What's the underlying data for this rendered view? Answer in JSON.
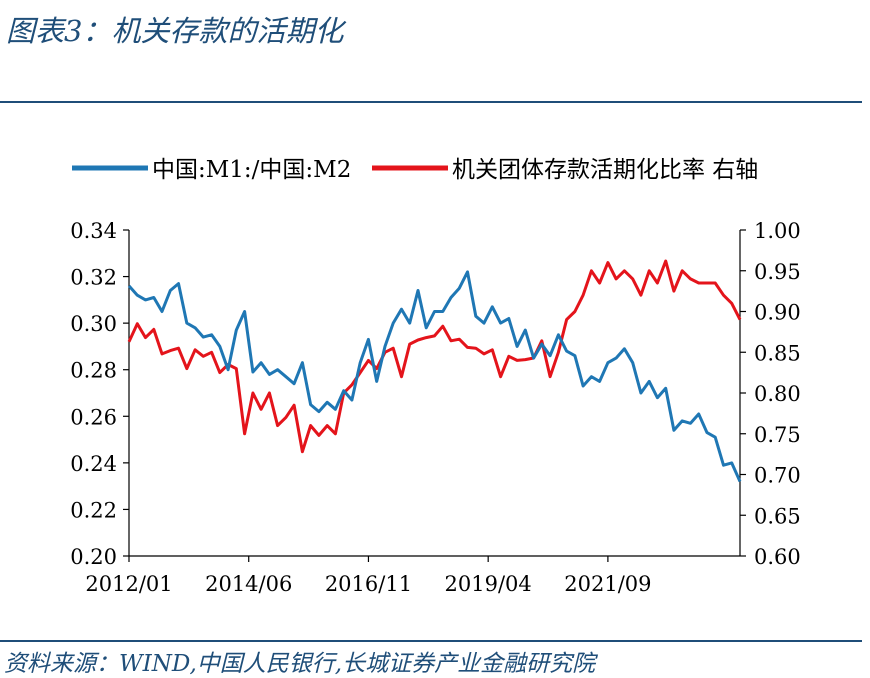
{
  "header": {
    "title": "图表3：机关存款的活期化"
  },
  "footer": {
    "source": "资料来源：WIND,中国人民银行,长城证券产业金融研究院"
  },
  "colors": {
    "series1": "#1f77b4",
    "series2": "#e4141b",
    "rule": "#1f4e79"
  },
  "chart_data": {
    "type": "line",
    "legend_position": "top",
    "grid": false,
    "x_ticks": [
      "2012/01",
      "2014/06",
      "2016/11",
      "2019/04",
      "2021/09"
    ],
    "xlim": [
      "2012-01",
      "2024-05"
    ],
    "y_left": {
      "ylim": [
        0.2,
        0.34
      ],
      "ticks": [
        "0.34",
        "0.32",
        "0.30",
        "0.28",
        "0.26",
        "0.24",
        "0.22",
        "0.20"
      ]
    },
    "y_right": {
      "ylim": [
        0.6,
        1.0
      ],
      "ticks": [
        "1.00",
        "0.95",
        "0.90",
        "0.85",
        "0.80",
        "0.75",
        "0.70",
        "0.65",
        "0.60"
      ]
    },
    "series": [
      {
        "name": "中国:M1:/中国:M2",
        "axis": "left",
        "x": [
          "2012-01",
          "2012-03",
          "2012-05",
          "2012-07",
          "2012-09",
          "2012-11",
          "2013-01",
          "2013-03",
          "2013-05",
          "2013-07",
          "2013-09",
          "2013-11",
          "2014-01",
          "2014-03",
          "2014-05",
          "2014-07",
          "2014-09",
          "2014-11",
          "2015-01",
          "2015-03",
          "2015-05",
          "2015-07",
          "2015-09",
          "2015-11",
          "2016-01",
          "2016-03",
          "2016-05",
          "2016-07",
          "2016-09",
          "2016-11",
          "2017-01",
          "2017-03",
          "2017-05",
          "2017-07",
          "2017-09",
          "2017-11",
          "2018-01",
          "2018-03",
          "2018-05",
          "2018-07",
          "2018-09",
          "2018-11",
          "2019-01",
          "2019-03",
          "2019-05",
          "2019-07",
          "2019-09",
          "2019-11",
          "2020-01",
          "2020-03",
          "2020-05",
          "2020-07",
          "2020-09",
          "2020-11",
          "2021-01",
          "2021-03",
          "2021-05",
          "2021-07",
          "2021-09",
          "2021-11",
          "2022-01",
          "2022-03",
          "2022-05",
          "2022-07",
          "2022-09",
          "2022-11",
          "2023-01",
          "2023-03",
          "2023-05",
          "2023-07",
          "2023-09",
          "2023-11",
          "2024-01",
          "2024-03",
          "2024-05"
        ],
        "values": [
          0.316,
          0.312,
          0.31,
          0.311,
          0.305,
          0.314,
          0.317,
          0.3,
          0.298,
          0.294,
          0.295,
          0.29,
          0.28,
          0.297,
          0.305,
          0.279,
          0.283,
          0.278,
          0.28,
          0.277,
          0.274,
          0.283,
          0.265,
          0.262,
          0.266,
          0.263,
          0.271,
          0.267,
          0.283,
          0.293,
          0.275,
          0.29,
          0.3,
          0.306,
          0.3,
          0.314,
          0.298,
          0.305,
          0.305,
          0.311,
          0.315,
          0.322,
          0.303,
          0.3,
          0.307,
          0.3,
          0.302,
          0.29,
          0.297,
          0.285,
          0.291,
          0.286,
          0.295,
          0.288,
          0.286,
          0.273,
          0.277,
          0.275,
          0.283,
          0.285,
          0.289,
          0.283,
          0.27,
          0.275,
          0.268,
          0.272,
          0.254,
          0.258,
          0.257,
          0.261,
          0.253,
          0.251,
          0.239,
          0.24,
          0.232
        ]
      },
      {
        "name": "机关团体存款活期化比率 右轴",
        "axis": "right",
        "x": [
          "2012-01",
          "2012-03",
          "2012-05",
          "2012-07",
          "2012-09",
          "2012-11",
          "2013-01",
          "2013-03",
          "2013-05",
          "2013-07",
          "2013-09",
          "2013-11",
          "2014-01",
          "2014-03",
          "2014-05",
          "2014-07",
          "2014-09",
          "2014-11",
          "2015-01",
          "2015-03",
          "2015-05",
          "2015-07",
          "2015-09",
          "2015-11",
          "2016-01",
          "2016-03",
          "2016-05",
          "2016-07",
          "2016-09",
          "2016-11",
          "2017-01",
          "2017-03",
          "2017-05",
          "2017-07",
          "2017-09",
          "2017-11",
          "2018-01",
          "2018-03",
          "2018-05",
          "2018-07",
          "2018-09",
          "2018-11",
          "2019-01",
          "2019-03",
          "2019-05",
          "2019-07",
          "2019-09",
          "2019-11",
          "2020-01",
          "2020-03",
          "2020-05",
          "2020-07",
          "2020-09",
          "2020-11",
          "2021-01",
          "2021-03",
          "2021-05",
          "2021-07",
          "2021-09",
          "2021-11",
          "2022-01",
          "2022-03",
          "2022-05",
          "2022-07",
          "2022-09",
          "2022-11",
          "2023-01",
          "2023-03",
          "2023-05",
          "2023-07",
          "2023-09",
          "2023-11",
          "2024-01",
          "2024-03",
          "2024-05"
        ],
        "values": [
          0.863,
          0.885,
          0.868,
          0.878,
          0.848,
          0.852,
          0.855,
          0.83,
          0.853,
          0.845,
          0.85,
          0.825,
          0.835,
          0.83,
          0.75,
          0.8,
          0.78,
          0.8,
          0.76,
          0.77,
          0.785,
          0.728,
          0.76,
          0.748,
          0.76,
          0.75,
          0.8,
          0.81,
          0.825,
          0.84,
          0.83,
          0.85,
          0.855,
          0.82,
          0.86,
          0.865,
          0.868,
          0.87,
          0.882,
          0.864,
          0.866,
          0.856,
          0.855,
          0.848,
          0.853,
          0.82,
          0.845,
          0.84,
          0.841,
          0.843,
          0.864,
          0.82,
          0.85,
          0.89,
          0.9,
          0.92,
          0.95,
          0.935,
          0.96,
          0.94,
          0.95,
          0.94,
          0.92,
          0.95,
          0.935,
          0.962,
          0.925,
          0.95,
          0.94,
          0.935,
          0.935,
          0.935,
          0.92,
          0.91,
          0.89
        ]
      }
    ]
  }
}
